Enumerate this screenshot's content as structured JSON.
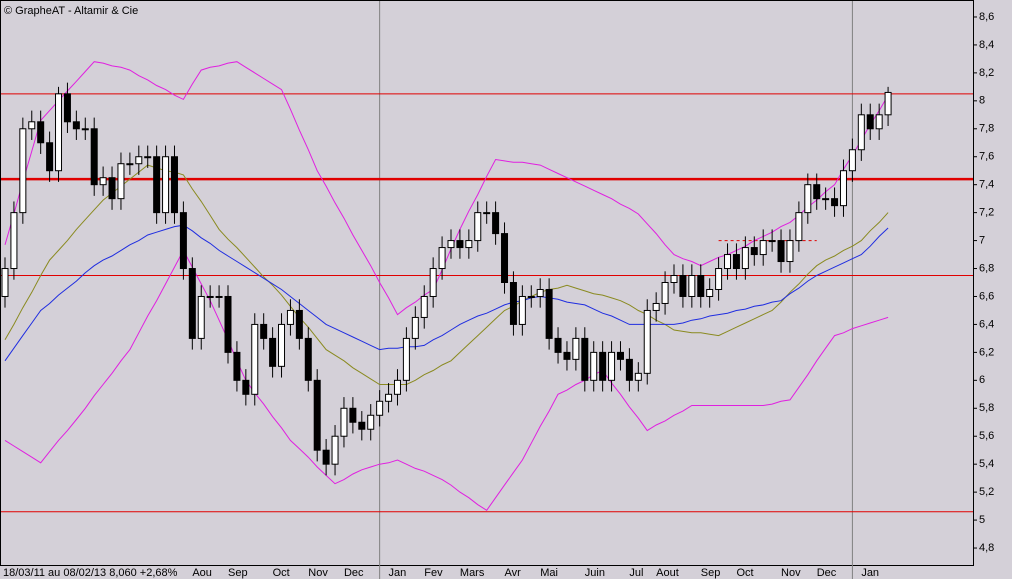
{
  "chart_data": {
    "type": "candlestick",
    "title": "© GrapheAT - Altamir & Cie",
    "caption": "18/03/11 au 08/02/13  8,060  +2,68%",
    "categories": [
      null,
      null,
      null,
      null,
      null,
      null,
      null,
      null,
      null,
      null,
      null,
      null,
      null,
      null,
      null,
      null,
      null,
      null,
      null,
      null,
      null,
      "Aou",
      null,
      null,
      null,
      "Sep",
      null,
      null,
      null,
      null,
      "Oct",
      null,
      null,
      null,
      "Nov",
      null,
      null,
      null,
      "Dec",
      null,
      null,
      null,
      null,
      "Jan",
      null,
      null,
      null,
      "Fev",
      null,
      null,
      null,
      "Mars",
      null,
      null,
      null,
      null,
      "Avr",
      null,
      null,
      null,
      "Mai",
      null,
      null,
      null,
      null,
      "Juin",
      null,
      null,
      null,
      null,
      "Jul",
      null,
      null,
      "Aout",
      null,
      null,
      null,
      null,
      "Sep",
      null,
      null,
      null,
      "Oct",
      null,
      null,
      null,
      null,
      "Nov",
      null,
      null,
      null,
      "Dec",
      null,
      null,
      null,
      null,
      "Jan",
      null,
      null,
      null
    ],
    "open": [
      6.6,
      6.8,
      7.2,
      7.8,
      7.85,
      7.7,
      7.5,
      8.05,
      7.85,
      7.8,
      7.8,
      7.4,
      7.45,
      7.3,
      7.55,
      7.55,
      7.6,
      7.6,
      7.2,
      7.6,
      7.2,
      6.8,
      6.3,
      6.6,
      6.6,
      6.6,
      6.2,
      6.0,
      5.9,
      6.4,
      6.3,
      6.1,
      6.4,
      6.5,
      6.3,
      6.0,
      5.5,
      5.4,
      5.6,
      5.8,
      5.7,
      5.65,
      5.75,
      5.85,
      5.9,
      6.0,
      6.3,
      6.45,
      6.6,
      6.8,
      6.95,
      7.0,
      6.95,
      7.0,
      7.2,
      7.2,
      7.05,
      6.7,
      6.4,
      6.6,
      6.6,
      6.65,
      6.3,
      6.2,
      6.15,
      6.3,
      6.0,
      6.2,
      6.0,
      6.2,
      6.15,
      6.0,
      6.05,
      6.5,
      6.55,
      6.7,
      6.75,
      6.6,
      6.75,
      6.6,
      6.65,
      6.8,
      6.9,
      6.8,
      6.95,
      6.9,
      7.0,
      7.0,
      6.85,
      7.0,
      7.2,
      7.4,
      7.3,
      7.3,
      7.25,
      7.5,
      7.65,
      7.9,
      7.8,
      7.9
    ],
    "high": [
      6.88,
      7.28,
      7.88,
      7.93,
      7.93,
      7.78,
      8.1,
      8.13,
      7.93,
      7.88,
      7.88,
      7.53,
      7.53,
      7.63,
      7.63,
      7.68,
      7.68,
      7.68,
      7.68,
      7.68,
      7.28,
      6.88,
      6.68,
      6.68,
      6.68,
      6.68,
      6.28,
      6.08,
      6.48,
      6.48,
      6.38,
      6.48,
      6.58,
      6.58,
      6.38,
      6.08,
      5.58,
      5.68,
      5.88,
      5.88,
      5.78,
      5.83,
      5.93,
      5.98,
      6.08,
      6.38,
      6.53,
      6.68,
      6.88,
      7.03,
      7.08,
      7.08,
      7.08,
      7.28,
      7.28,
      7.28,
      7.13,
      6.78,
      6.68,
      6.68,
      6.73,
      6.73,
      6.38,
      6.28,
      6.38,
      6.38,
      6.28,
      6.28,
      6.28,
      6.28,
      6.23,
      6.13,
      6.58,
      6.63,
      6.78,
      6.83,
      6.83,
      6.83,
      6.83,
      6.73,
      6.88,
      6.98,
      6.98,
      7.03,
      7.03,
      7.08,
      7.08,
      7.08,
      7.08,
      7.28,
      7.48,
      7.48,
      7.38,
      7.38,
      7.58,
      7.73,
      7.98,
      7.98,
      7.98,
      8.1
    ],
    "low": [
      6.52,
      6.72,
      7.12,
      7.72,
      7.62,
      7.42,
      7.42,
      7.77,
      7.72,
      7.72,
      7.32,
      7.32,
      7.22,
      7.22,
      7.47,
      7.47,
      7.52,
      7.12,
      7.12,
      7.12,
      6.72,
      6.22,
      6.22,
      6.52,
      6.52,
      6.12,
      5.92,
      5.82,
      5.82,
      6.22,
      6.02,
      6.02,
      6.32,
      6.22,
      5.92,
      5.42,
      5.32,
      5.32,
      5.52,
      5.62,
      5.57,
      5.57,
      5.67,
      5.77,
      5.82,
      5.92,
      6.22,
      6.37,
      6.52,
      6.72,
      6.87,
      6.87,
      6.87,
      6.92,
      7.12,
      6.97,
      6.62,
      6.32,
      6.32,
      6.52,
      6.52,
      6.22,
      6.12,
      6.07,
      6.07,
      5.92,
      5.92,
      5.92,
      5.92,
      6.07,
      5.92,
      5.92,
      5.97,
      6.42,
      6.47,
      6.62,
      6.52,
      6.52,
      6.52,
      6.52,
      6.57,
      6.72,
      6.72,
      6.72,
      6.82,
      6.82,
      6.92,
      6.77,
      6.77,
      6.92,
      7.12,
      7.22,
      7.22,
      7.17,
      7.17,
      7.42,
      7.57,
      7.72,
      7.72,
      7.82
    ],
    "close": [
      6.8,
      7.2,
      7.8,
      7.85,
      7.7,
      7.5,
      8.05,
      7.85,
      7.8,
      7.8,
      7.4,
      7.45,
      7.3,
      7.55,
      7.55,
      7.6,
      7.6,
      7.2,
      7.6,
      7.2,
      6.8,
      6.3,
      6.6,
      6.6,
      6.6,
      6.2,
      6.0,
      5.9,
      6.4,
      6.3,
      6.1,
      6.4,
      6.5,
      6.3,
      6.0,
      5.5,
      5.4,
      5.6,
      5.8,
      5.7,
      5.65,
      5.75,
      5.85,
      5.9,
      6.0,
      6.3,
      6.45,
      6.6,
      6.8,
      6.95,
      7.0,
      6.95,
      7.0,
      7.2,
      7.2,
      7.05,
      6.7,
      6.4,
      6.6,
      6.6,
      6.65,
      6.3,
      6.2,
      6.15,
      6.3,
      6.0,
      6.2,
      6.0,
      6.2,
      6.15,
      6.0,
      6.05,
      6.5,
      6.55,
      6.7,
      6.75,
      6.6,
      6.75,
      6.6,
      6.65,
      6.8,
      6.9,
      6.8,
      6.95,
      6.9,
      7.0,
      7.0,
      6.85,
      7.0,
      7.2,
      7.4,
      7.3,
      7.3,
      7.25,
      7.5,
      7.65,
      7.9,
      7.8,
      7.9,
      8.06
    ],
    "series": [
      {
        "color": "#e020e0",
        "values": [
          6.97,
          7.19,
          7.42,
          7.64,
          7.86,
          7.93,
          8.0,
          8.07,
          8.14,
          8.21,
          8.28,
          8.27,
          8.25,
          8.24,
          8.22,
          8.18,
          8.15,
          8.11,
          8.08,
          8.04,
          8.01,
          8.12,
          8.22,
          8.24,
          8.25,
          8.27,
          8.28,
          8.24,
          8.2,
          8.16,
          8.12,
          8.08,
          7.94,
          7.79,
          7.65,
          7.5,
          7.39,
          7.27,
          7.16,
          7.04,
          6.93,
          6.82,
          6.7,
          6.59,
          6.47,
          6.52,
          6.56,
          6.61,
          6.65,
          6.79,
          6.94,
          7.08,
          7.21,
          7.33,
          7.46,
          7.58,
          7.57,
          7.56,
          7.56,
          7.55,
          7.54,
          7.51,
          7.48,
          7.45,
          7.42,
          7.39,
          7.36,
          7.33,
          7.3,
          7.26,
          7.23,
          7.19,
          7.12,
          7.05,
          6.97,
          6.9,
          6.87,
          6.85,
          6.82,
          6.85,
          6.88,
          6.9,
          6.93,
          6.96,
          7.0,
          7.03,
          7.06,
          7.1,
          7.13,
          7.18,
          7.24,
          7.29,
          7.35,
          7.4,
          7.51,
          7.61,
          7.72,
          7.83,
          7.93,
          8.04
        ]
      },
      {
        "color": "#e020e0",
        "values": [
          5.57,
          5.53,
          5.49,
          5.45,
          5.41,
          5.49,
          5.57,
          5.64,
          5.72,
          5.8,
          5.89,
          5.97,
          6.05,
          6.14,
          6.22,
          6.34,
          6.46,
          6.57,
          6.69,
          6.81,
          6.93,
          6.81,
          6.69,
          6.57,
          6.43,
          6.29,
          6.14,
          6.0,
          5.91,
          5.83,
          5.74,
          5.66,
          5.57,
          5.51,
          5.45,
          5.38,
          5.32,
          5.26,
          5.29,
          5.33,
          5.36,
          5.38,
          5.4,
          5.41,
          5.43,
          5.4,
          5.37,
          5.35,
          5.32,
          5.29,
          5.25,
          5.2,
          5.16,
          5.11,
          5.07,
          5.16,
          5.25,
          5.34,
          5.43,
          5.55,
          5.67,
          5.78,
          5.9,
          5.93,
          5.97,
          6.0,
          6.04,
          6.07,
          5.98,
          5.9,
          5.81,
          5.73,
          5.64,
          5.68,
          5.71,
          5.75,
          5.78,
          5.82,
          5.82,
          5.82,
          5.82,
          5.82,
          5.82,
          5.82,
          5.82,
          5.82,
          5.83,
          5.85,
          5.86,
          5.95,
          6.04,
          6.14,
          6.23,
          6.32,
          6.34,
          6.37,
          6.39,
          6.41,
          6.43,
          6.45
        ]
      },
      {
        "color": "#8a8a20",
        "values": [
          6.29,
          6.4,
          6.52,
          6.63,
          6.75,
          6.86,
          6.93,
          7.0,
          7.08,
          7.15,
          7.22,
          7.29,
          7.34,
          7.39,
          7.44,
          7.49,
          7.54,
          7.52,
          7.5,
          7.49,
          7.47,
          7.37,
          7.28,
          7.18,
          7.08,
          7.01,
          6.95,
          6.88,
          6.81,
          6.74,
          6.68,
          6.61,
          6.53,
          6.45,
          6.38,
          6.3,
          6.22,
          6.18,
          6.14,
          6.09,
          6.05,
          6.01,
          5.97,
          5.97,
          5.97,
          5.97,
          6.0,
          6.04,
          6.07,
          6.11,
          6.14,
          6.2,
          6.26,
          6.32,
          6.38,
          6.44,
          6.5,
          6.53,
          6.57,
          6.6,
          6.63,
          6.65,
          6.66,
          6.68,
          6.66,
          6.64,
          6.62,
          6.61,
          6.59,
          6.57,
          6.54,
          6.5,
          6.47,
          6.43,
          6.4,
          6.36,
          6.35,
          6.34,
          6.34,
          6.33,
          6.32,
          6.35,
          6.38,
          6.41,
          6.44,
          6.47,
          6.5,
          6.56,
          6.63,
          6.69,
          6.76,
          6.82,
          6.86,
          6.89,
          6.93,
          6.96,
          7.0,
          7.07,
          7.13,
          7.2
        ]
      },
      {
        "color": "#1f2de0",
        "values": [
          6.14,
          6.23,
          6.32,
          6.41,
          6.5,
          6.55,
          6.61,
          6.66,
          6.71,
          6.77,
          6.82,
          6.86,
          6.89,
          6.93,
          6.97,
          7.0,
          7.04,
          7.06,
          7.08,
          7.1,
          7.11,
          7.07,
          7.02,
          6.98,
          6.93,
          6.89,
          6.85,
          6.81,
          6.77,
          6.73,
          6.69,
          6.65,
          6.6,
          6.55,
          6.5,
          6.45,
          6.4,
          6.37,
          6.34,
          6.31,
          6.28,
          6.25,
          6.22,
          6.23,
          6.23,
          6.24,
          6.24,
          6.25,
          6.29,
          6.32,
          6.36,
          6.4,
          6.43,
          6.46,
          6.48,
          6.51,
          6.54,
          6.56,
          6.57,
          6.59,
          6.6,
          6.59,
          6.58,
          6.56,
          6.55,
          6.54,
          6.51,
          6.48,
          6.46,
          6.43,
          6.4,
          6.4,
          6.4,
          6.4,
          6.4,
          6.4,
          6.41,
          6.43,
          6.44,
          6.46,
          6.47,
          6.48,
          6.5,
          6.51,
          6.53,
          6.54,
          6.56,
          6.57,
          6.62,
          6.66,
          6.71,
          6.75,
          6.78,
          6.81,
          6.84,
          6.87,
          6.9,
          6.96,
          7.03,
          7.09
        ]
      }
    ],
    "levels": [
      {
        "value": 8.05
      },
      {
        "value": 7.44,
        "strong": true
      },
      {
        "value": 6.75
      },
      {
        "value": 5.06
      },
      {
        "value": 7.0,
        "from": 80,
        "to": 91,
        "dashed": true
      }
    ],
    "level_color": "#e00000",
    "up_color": "#ffffff",
    "down_color": "#000000",
    "ylim": [
      4.68,
      8.69
    ],
    "yticks": [
      {
        "value": 4.8,
        "label": "4,8"
      },
      5,
      {
        "value": 5.2,
        "label": "5,2"
      },
      {
        "value": 5.4,
        "label": "5,4"
      },
      {
        "value": 5.6,
        "label": "5,6"
      },
      {
        "value": 5.8,
        "label": "5,8"
      },
      6,
      {
        "value": 6.2,
        "label": "6,2"
      },
      {
        "value": 6.4,
        "label": "6,4"
      },
      {
        "value": 6.6,
        "label": "6,6"
      },
      {
        "value": 6.8,
        "label": "6,8"
      },
      7,
      {
        "value": 7.2,
        "label": "7,2"
      },
      {
        "value": 7.4,
        "label": "7,4"
      },
      {
        "value": 7.6,
        "label": "7,6"
      },
      {
        "value": 7.8,
        "label": "7,8"
      },
      8,
      {
        "value": 8.2,
        "label": "8,2"
      },
      {
        "value": 8.4,
        "label": "8,4"
      },
      {
        "value": 8.6,
        "label": "8,6"
      }
    ],
    "grid": false
  }
}
